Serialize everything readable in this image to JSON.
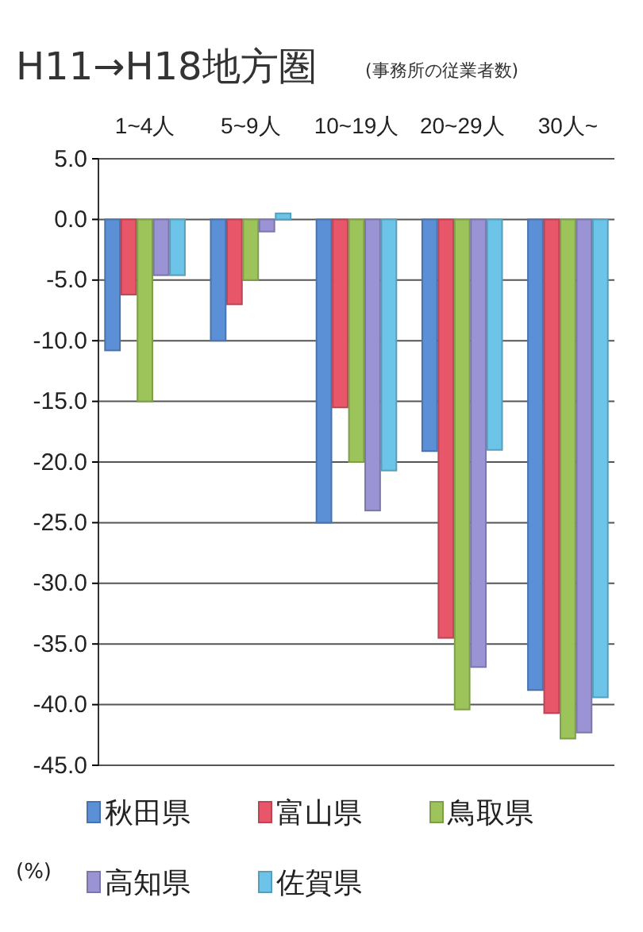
{
  "chart_data": {
    "type": "bar",
    "title": "H11→H18地方圏",
    "subtitle": "(事務所の従業者数)",
    "ylabel": "(%)",
    "categories": [
      "1~4人",
      "5~9人",
      "10~19人",
      "20~29人",
      "30人~"
    ],
    "series": [
      {
        "name": "秋田県",
        "color": "#5b8fd6",
        "values": [
          -10.8,
          -10.0,
          -25.0,
          -19.1,
          -38.8
        ]
      },
      {
        "name": "富山県",
        "color": "#e8566a",
        "values": [
          -6.2,
          -7.0,
          -15.5,
          -34.5,
          -40.7
        ]
      },
      {
        "name": "鳥取県",
        "color": "#9cc45a",
        "values": [
          -15.0,
          -5.0,
          -20.0,
          -40.4,
          -42.8
        ]
      },
      {
        "name": "高知県",
        "color": "#9a94d4",
        "values": [
          -4.6,
          -1.0,
          -24.0,
          -36.9,
          -42.3
        ]
      },
      {
        "name": "佐賀県",
        "color": "#6cc4e8",
        "values": [
          -4.6,
          0.5,
          -20.7,
          -19.0,
          -39.4
        ]
      }
    ],
    "ylim": [
      -45,
      5
    ],
    "yticks": [
      {
        "value": 5,
        "label": "5.0"
      },
      {
        "value": 0,
        "label": "0.0"
      },
      {
        "value": -5,
        "label": "-5.0"
      },
      {
        "value": -10,
        "label": "-10.0"
      },
      {
        "value": -15,
        "label": "-15.0"
      },
      {
        "value": -20,
        "label": "-20.0"
      },
      {
        "value": -25,
        "label": "-25.0"
      },
      {
        "value": -30,
        "label": "-30.0"
      },
      {
        "value": -35,
        "label": "-35.0"
      },
      {
        "value": -40,
        "label": "-40.0"
      },
      {
        "value": -45,
        "label": "-45.0"
      }
    ],
    "grid": "y",
    "legend": "bottom"
  }
}
